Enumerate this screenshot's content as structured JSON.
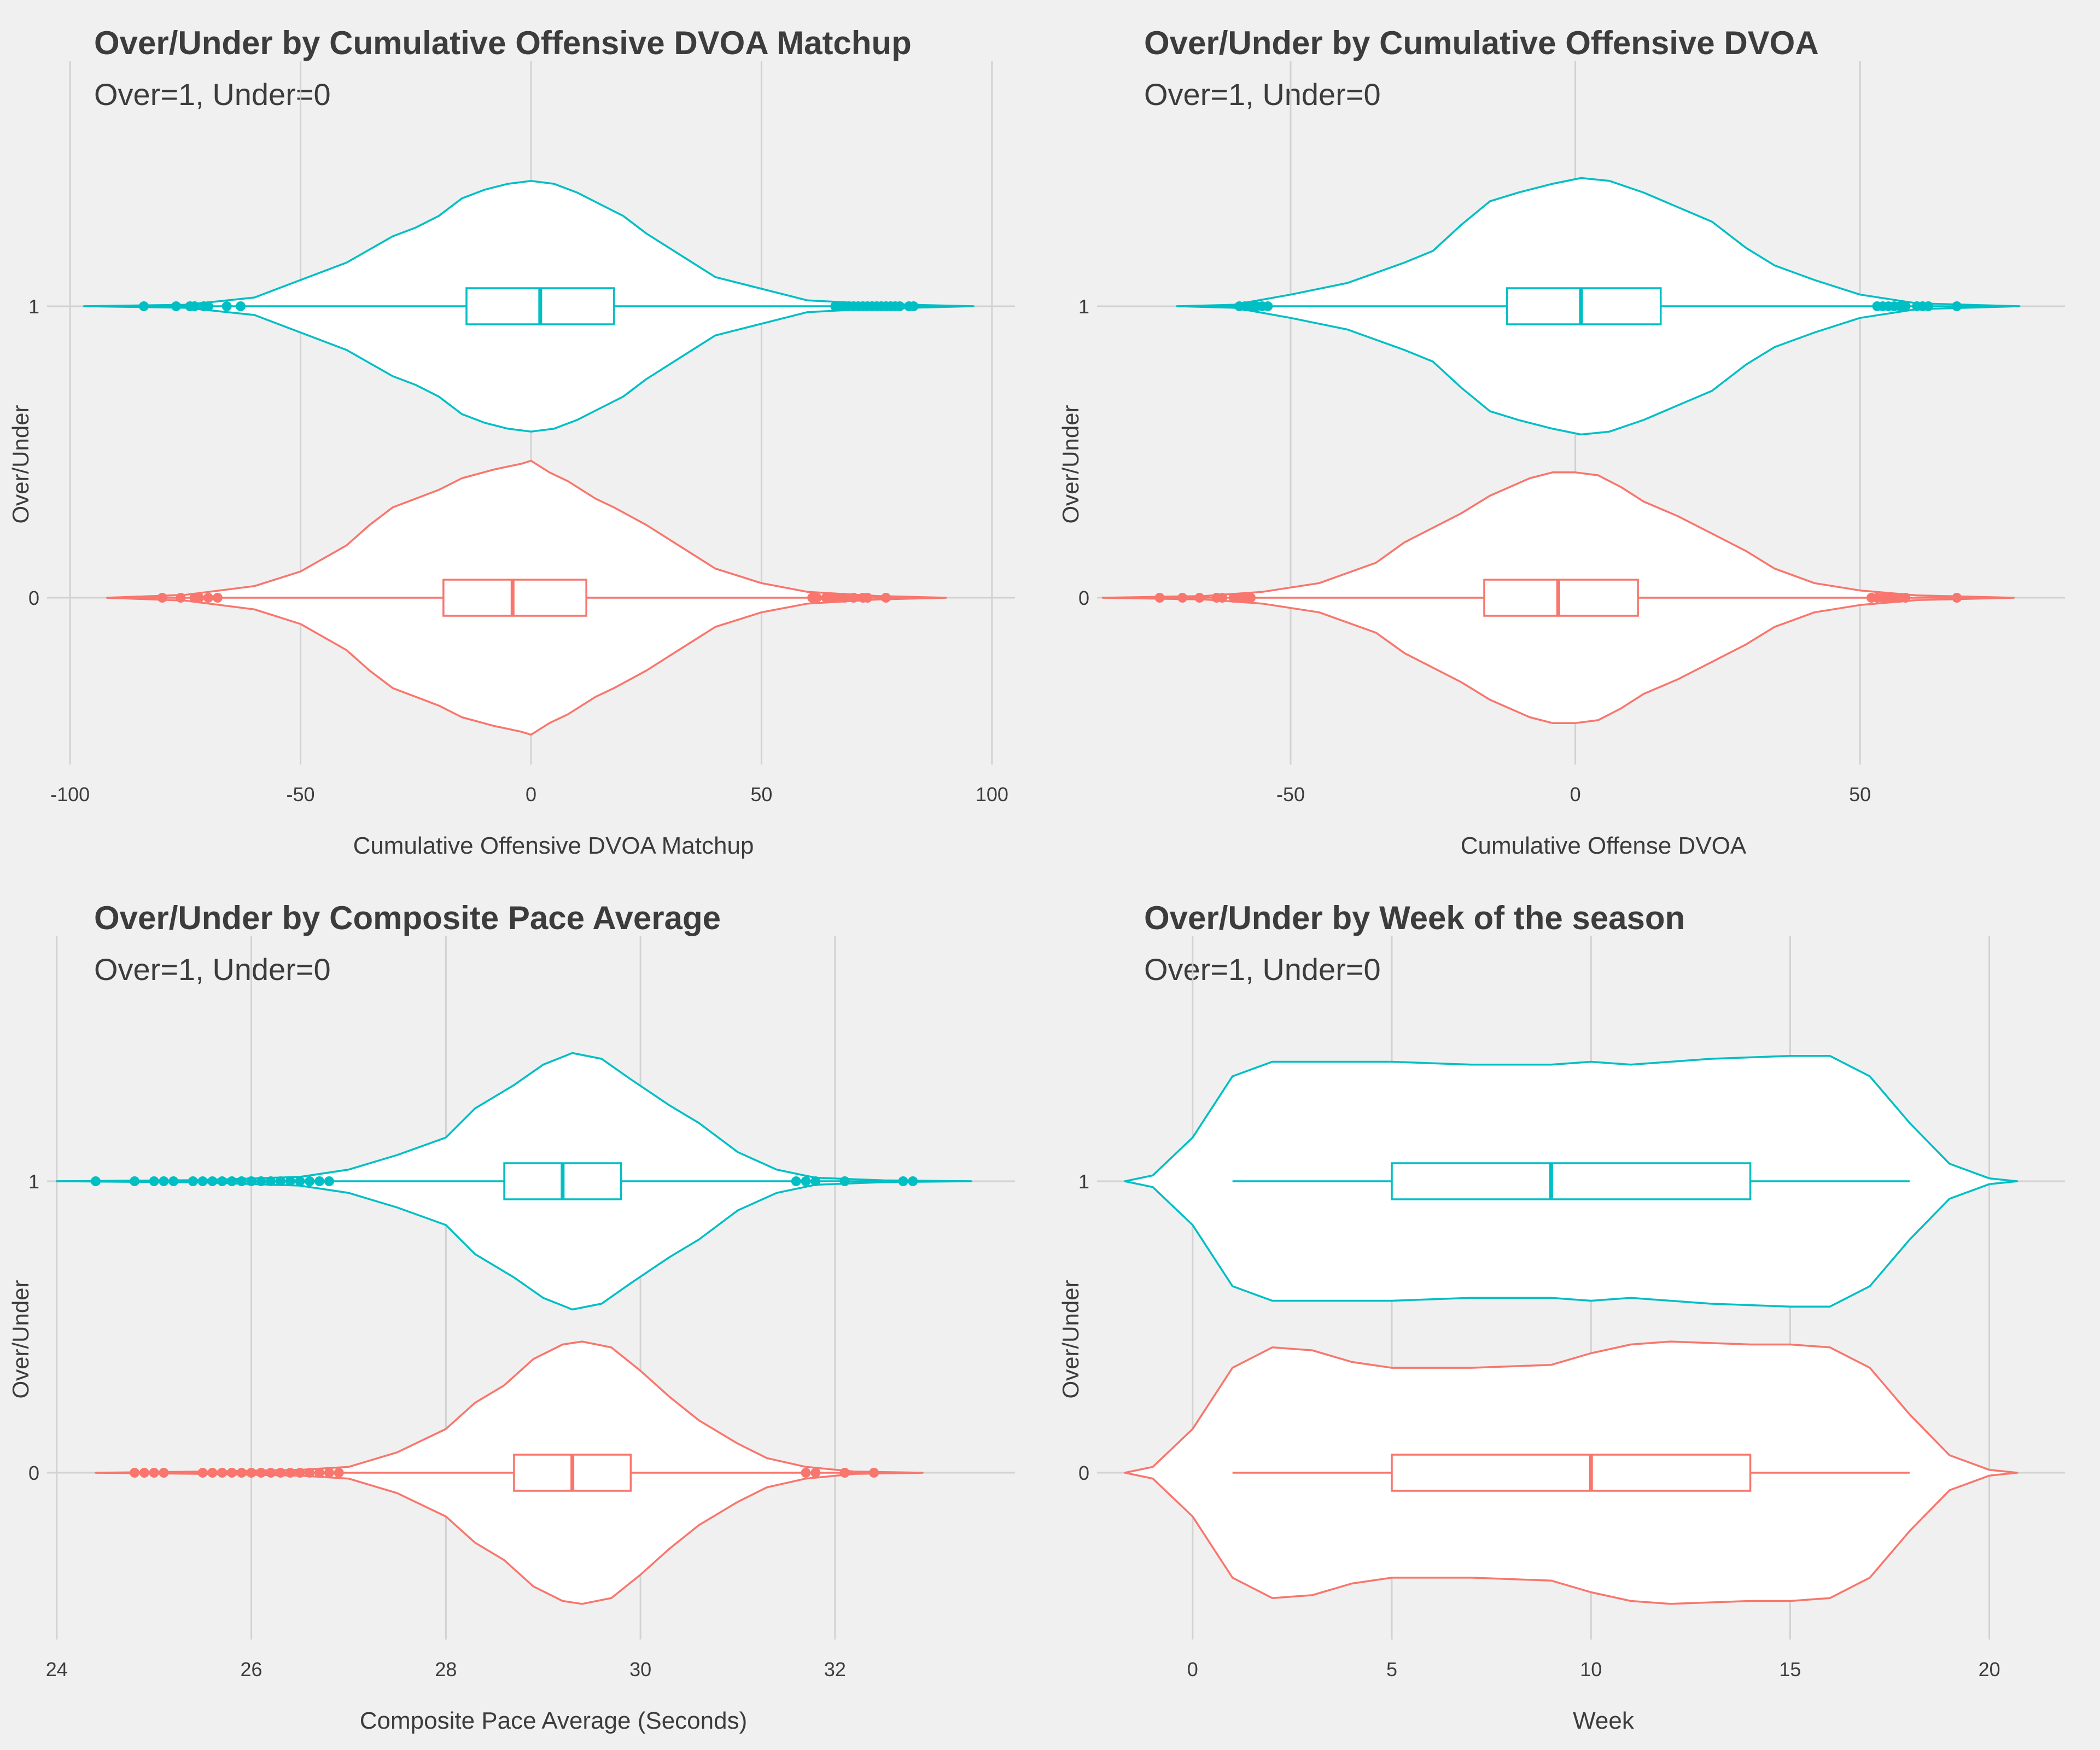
{
  "colors": {
    "over": "#00BFC4",
    "under": "#F8766D",
    "background": "#F0F0F0",
    "grid": "#D2D2D2",
    "violin_fill": "#FFFFFF",
    "text": "#3C3C3C"
  },
  "chart_data": [
    {
      "type": "violin",
      "title": "Over/Under by Cumulative Offensive DVOA Matchup",
      "subtitle": "Over=1, Under=0",
      "xlabel": "Cumulative Offensive DVOA Matchup",
      "ylabel": "Over/Under",
      "xlim": [
        -105,
        105
      ],
      "xticks": [
        -100,
        -50,
        0,
        50,
        100
      ],
      "tick_labels": [
        "-100",
        "-50",
        "0",
        "50",
        "100"
      ],
      "categories": [
        "0",
        "1"
      ],
      "series": [
        {
          "name": "0",
          "color": "under",
          "box": {
            "min": -92,
            "q1": -19,
            "median": -4,
            "q3": 12,
            "max": 90
          },
          "outliers": [
            -80,
            -76,
            -73,
            -72,
            -70,
            -68,
            61,
            62,
            64,
            65,
            66,
            67,
            68,
            70,
            72,
            73,
            77
          ],
          "density": [
            [
              -92,
              0.0
            ],
            [
              -75,
              0.01
            ],
            [
              -60,
              0.04
            ],
            [
              -50,
              0.09
            ],
            [
              -40,
              0.18
            ],
            [
              -35,
              0.25
            ],
            [
              -30,
              0.31
            ],
            [
              -20,
              0.37
            ],
            [
              -15,
              0.41
            ],
            [
              -8,
              0.44
            ],
            [
              -5,
              0.45
            ],
            [
              -2,
              0.46
            ],
            [
              0,
              0.47
            ],
            [
              1,
              0.46
            ],
            [
              4,
              0.43
            ],
            [
              8,
              0.4
            ],
            [
              14,
              0.34
            ],
            [
              18,
              0.31
            ],
            [
              25,
              0.25
            ],
            [
              32,
              0.18
            ],
            [
              40,
              0.1
            ],
            [
              50,
              0.05
            ],
            [
              60,
              0.02
            ],
            [
              75,
              0.006
            ],
            [
              90,
              0.0
            ]
          ]
        },
        {
          "name": "1",
          "color": "over",
          "box": {
            "min": -97,
            "q1": -14,
            "median": 2,
            "q3": 18,
            "max": 96
          },
          "outliers": [
            -84,
            -77,
            -74,
            -73,
            -71,
            -70,
            -66,
            -63,
            66,
            67,
            68,
            69,
            70,
            71,
            72,
            73,
            74,
            75,
            76,
            77,
            78,
            79,
            80,
            82,
            83
          ],
          "density": [
            [
              -97,
              0.0
            ],
            [
              -75,
              0.005
            ],
            [
              -60,
              0.03
            ],
            [
              -50,
              0.09
            ],
            [
              -40,
              0.15
            ],
            [
              -30,
              0.24
            ],
            [
              -25,
              0.27
            ],
            [
              -20,
              0.31
            ],
            [
              -15,
              0.37
            ],
            [
              -10,
              0.4
            ],
            [
              -5,
              0.42
            ],
            [
              0,
              0.43
            ],
            [
              5,
              0.42
            ],
            [
              10,
              0.39
            ],
            [
              15,
              0.35
            ],
            [
              20,
              0.31
            ],
            [
              25,
              0.25
            ],
            [
              32,
              0.18
            ],
            [
              40,
              0.1
            ],
            [
              50,
              0.06
            ],
            [
              60,
              0.02
            ],
            [
              75,
              0.008
            ],
            [
              96,
              0.0
            ]
          ]
        }
      ]
    },
    {
      "type": "violin",
      "title": "Over/Under by Cumulative Offensive DVOA",
      "subtitle": "Over=1, Under=0",
      "xlabel": "Cumulative Offense DVOA",
      "ylabel": "Over/Under",
      "xlim": [
        -84,
        86
      ],
      "xticks": [
        -50,
        0,
        50
      ],
      "tick_labels": [
        "-50",
        "0",
        "50"
      ],
      "categories": [
        "0",
        "1"
      ],
      "series": [
        {
          "name": "0",
          "color": "under",
          "box": {
            "min": -83,
            "q1": -16,
            "median": -3,
            "q3": 11,
            "max": 77
          },
          "outliers": [
            -73,
            -69,
            -66,
            -63,
            -62,
            -60,
            -59,
            -58,
            -57,
            52,
            53,
            54,
            55,
            56,
            57,
            58,
            67
          ],
          "density": [
            [
              -83,
              0.0
            ],
            [
              -65,
              0.006
            ],
            [
              -55,
              0.02
            ],
            [
              -45,
              0.05
            ],
            [
              -35,
              0.12
            ],
            [
              -30,
              0.19
            ],
            [
              -25,
              0.24
            ],
            [
              -20,
              0.29
            ],
            [
              -15,
              0.35
            ],
            [
              -8,
              0.41
            ],
            [
              -4,
              0.43
            ],
            [
              0,
              0.43
            ],
            [
              4,
              0.42
            ],
            [
              8,
              0.38
            ],
            [
              12,
              0.33
            ],
            [
              18,
              0.28
            ],
            [
              24,
              0.22
            ],
            [
              30,
              0.16
            ],
            [
              35,
              0.1
            ],
            [
              42,
              0.05
            ],
            [
              50,
              0.025
            ],
            [
              60,
              0.008
            ],
            [
              77,
              0.0
            ]
          ]
        },
        {
          "name": "1",
          "color": "over",
          "box": {
            "min": -70,
            "q1": -12,
            "median": 1,
            "q3": 15,
            "max": 78
          },
          "outliers": [
            -59,
            -58,
            -57,
            -56,
            -55,
            -54,
            53,
            54,
            55,
            56,
            57,
            58,
            60,
            61,
            62,
            67
          ],
          "density": [
            [
              -70,
              0.0
            ],
            [
              -60,
              0.005
            ],
            [
              -50,
              0.04
            ],
            [
              -40,
              0.08
            ],
            [
              -30,
              0.15
            ],
            [
              -25,
              0.19
            ],
            [
              -20,
              0.28
            ],
            [
              -15,
              0.36
            ],
            [
              -10,
              0.39
            ],
            [
              -4,
              0.42
            ],
            [
              1,
              0.44
            ],
            [
              6,
              0.43
            ],
            [
              12,
              0.39
            ],
            [
              18,
              0.34
            ],
            [
              24,
              0.29
            ],
            [
              30,
              0.2
            ],
            [
              35,
              0.14
            ],
            [
              42,
              0.09
            ],
            [
              50,
              0.04
            ],
            [
              60,
              0.01
            ],
            [
              78,
              0.0
            ]
          ]
        }
      ]
    },
    {
      "type": "violin",
      "title": "Over/Under by Composite Pace Average",
      "subtitle": "Over=1, Under=0",
      "xlabel": "Composite Pace Average (Seconds)",
      "ylabel": "Over/Under",
      "xlim": [
        23.9,
        33.85
      ],
      "xticks": [
        24,
        26,
        28,
        30,
        32
      ],
      "tick_labels": [
        "24",
        "26",
        "28",
        "30",
        "32"
      ],
      "categories": [
        "0",
        "1"
      ],
      "series": [
        {
          "name": "0",
          "color": "under",
          "box": {
            "min": 24.4,
            "q1": 28.7,
            "median": 29.3,
            "q3": 29.9,
            "max": 32.9
          },
          "outliers": [
            24.8,
            24.9,
            25.0,
            25.1,
            25.5,
            25.6,
            25.7,
            25.8,
            25.9,
            26.0,
            26.1,
            26.2,
            26.3,
            26.4,
            26.5,
            26.6,
            26.7,
            26.8,
            26.9,
            31.7,
            31.8,
            32.1,
            32.4
          ],
          "density": [
            [
              24.4,
              0.0
            ],
            [
              25.5,
              0.004
            ],
            [
              26.5,
              0.01
            ],
            [
              27.0,
              0.02
            ],
            [
              27.5,
              0.07
            ],
            [
              28.0,
              0.15
            ],
            [
              28.3,
              0.24
            ],
            [
              28.6,
              0.3
            ],
            [
              28.9,
              0.39
            ],
            [
              29.2,
              0.44
            ],
            [
              29.4,
              0.45
            ],
            [
              29.7,
              0.43
            ],
            [
              30.0,
              0.35
            ],
            [
              30.3,
              0.26
            ],
            [
              30.6,
              0.18
            ],
            [
              31.0,
              0.1
            ],
            [
              31.3,
              0.05
            ],
            [
              31.7,
              0.02
            ],
            [
              32.2,
              0.004
            ],
            [
              32.9,
              0.0
            ]
          ]
        },
        {
          "name": "1",
          "color": "over",
          "box": {
            "min": 24.0,
            "q1": 28.6,
            "median": 29.2,
            "q3": 29.8,
            "max": 33.4
          },
          "outliers": [
            24.4,
            24.8,
            25.0,
            25.1,
            25.2,
            25.4,
            25.5,
            25.6,
            25.7,
            25.8,
            25.9,
            26.0,
            26.1,
            26.2,
            26.3,
            26.4,
            26.5,
            26.6,
            26.7,
            26.8,
            31.6,
            31.7,
            31.8,
            32.1,
            32.7,
            32.8
          ],
          "density": [
            [
              24.0,
              0.0
            ],
            [
              25.5,
              0.004
            ],
            [
              26.5,
              0.015
            ],
            [
              27.0,
              0.04
            ],
            [
              27.5,
              0.09
            ],
            [
              28.0,
              0.15
            ],
            [
              28.3,
              0.25
            ],
            [
              28.7,
              0.33
            ],
            [
              29.0,
              0.4
            ],
            [
              29.3,
              0.44
            ],
            [
              29.6,
              0.42
            ],
            [
              29.9,
              0.35
            ],
            [
              30.3,
              0.26
            ],
            [
              30.6,
              0.2
            ],
            [
              31.0,
              0.1
            ],
            [
              31.4,
              0.04
            ],
            [
              31.8,
              0.012
            ],
            [
              32.5,
              0.003
            ],
            [
              33.4,
              0.0
            ]
          ]
        }
      ]
    },
    {
      "type": "violin",
      "title": "Over/Under by Week of the season",
      "subtitle": "Over=1, Under=0",
      "xlabel": "Week",
      "ylabel": "Over/Under",
      "xlim": [
        -2.4,
        21.9
      ],
      "xticks": [
        0,
        5,
        10,
        15,
        20
      ],
      "tick_labels": [
        "0",
        "5",
        "10",
        "15",
        "20"
      ],
      "categories": [
        "0",
        "1"
      ],
      "series": [
        {
          "name": "0",
          "color": "under",
          "box": {
            "min": 1,
            "q1": 5,
            "median": 10,
            "q3": 14,
            "max": 18
          },
          "outliers": [],
          "density": [
            [
              -1.7,
              0.0
            ],
            [
              -1.0,
              0.02
            ],
            [
              0.0,
              0.15
            ],
            [
              1.0,
              0.36
            ],
            [
              2.0,
              0.43
            ],
            [
              3.0,
              0.42
            ],
            [
              4.0,
              0.38
            ],
            [
              5.0,
              0.36
            ],
            [
              7.0,
              0.36
            ],
            [
              9.0,
              0.37
            ],
            [
              10.0,
              0.41
            ],
            [
              11.0,
              0.44
            ],
            [
              12.0,
              0.45
            ],
            [
              14.0,
              0.44
            ],
            [
              15.0,
              0.44
            ],
            [
              16.0,
              0.43
            ],
            [
              17.0,
              0.36
            ],
            [
              18.0,
              0.2
            ],
            [
              19.0,
              0.06
            ],
            [
              20.0,
              0.01
            ],
            [
              20.7,
              0.0
            ]
          ]
        },
        {
          "name": "1",
          "color": "over",
          "box": {
            "min": 1,
            "q1": 5,
            "median": 9,
            "q3": 14,
            "max": 18
          },
          "outliers": [],
          "density": [
            [
              -1.7,
              0.0
            ],
            [
              -1.0,
              0.02
            ],
            [
              0.0,
              0.15
            ],
            [
              1.0,
              0.36
            ],
            [
              2.0,
              0.41
            ],
            [
              4.0,
              0.41
            ],
            [
              5.0,
              0.41
            ],
            [
              7.0,
              0.4
            ],
            [
              9.0,
              0.4
            ],
            [
              10.0,
              0.41
            ],
            [
              11.0,
              0.4
            ],
            [
              13.0,
              0.42
            ],
            [
              15.0,
              0.43
            ],
            [
              16.0,
              0.43
            ],
            [
              17.0,
              0.36
            ],
            [
              18.0,
              0.2
            ],
            [
              19.0,
              0.06
            ],
            [
              20.0,
              0.01
            ],
            [
              20.7,
              0.0
            ]
          ]
        }
      ]
    }
  ]
}
